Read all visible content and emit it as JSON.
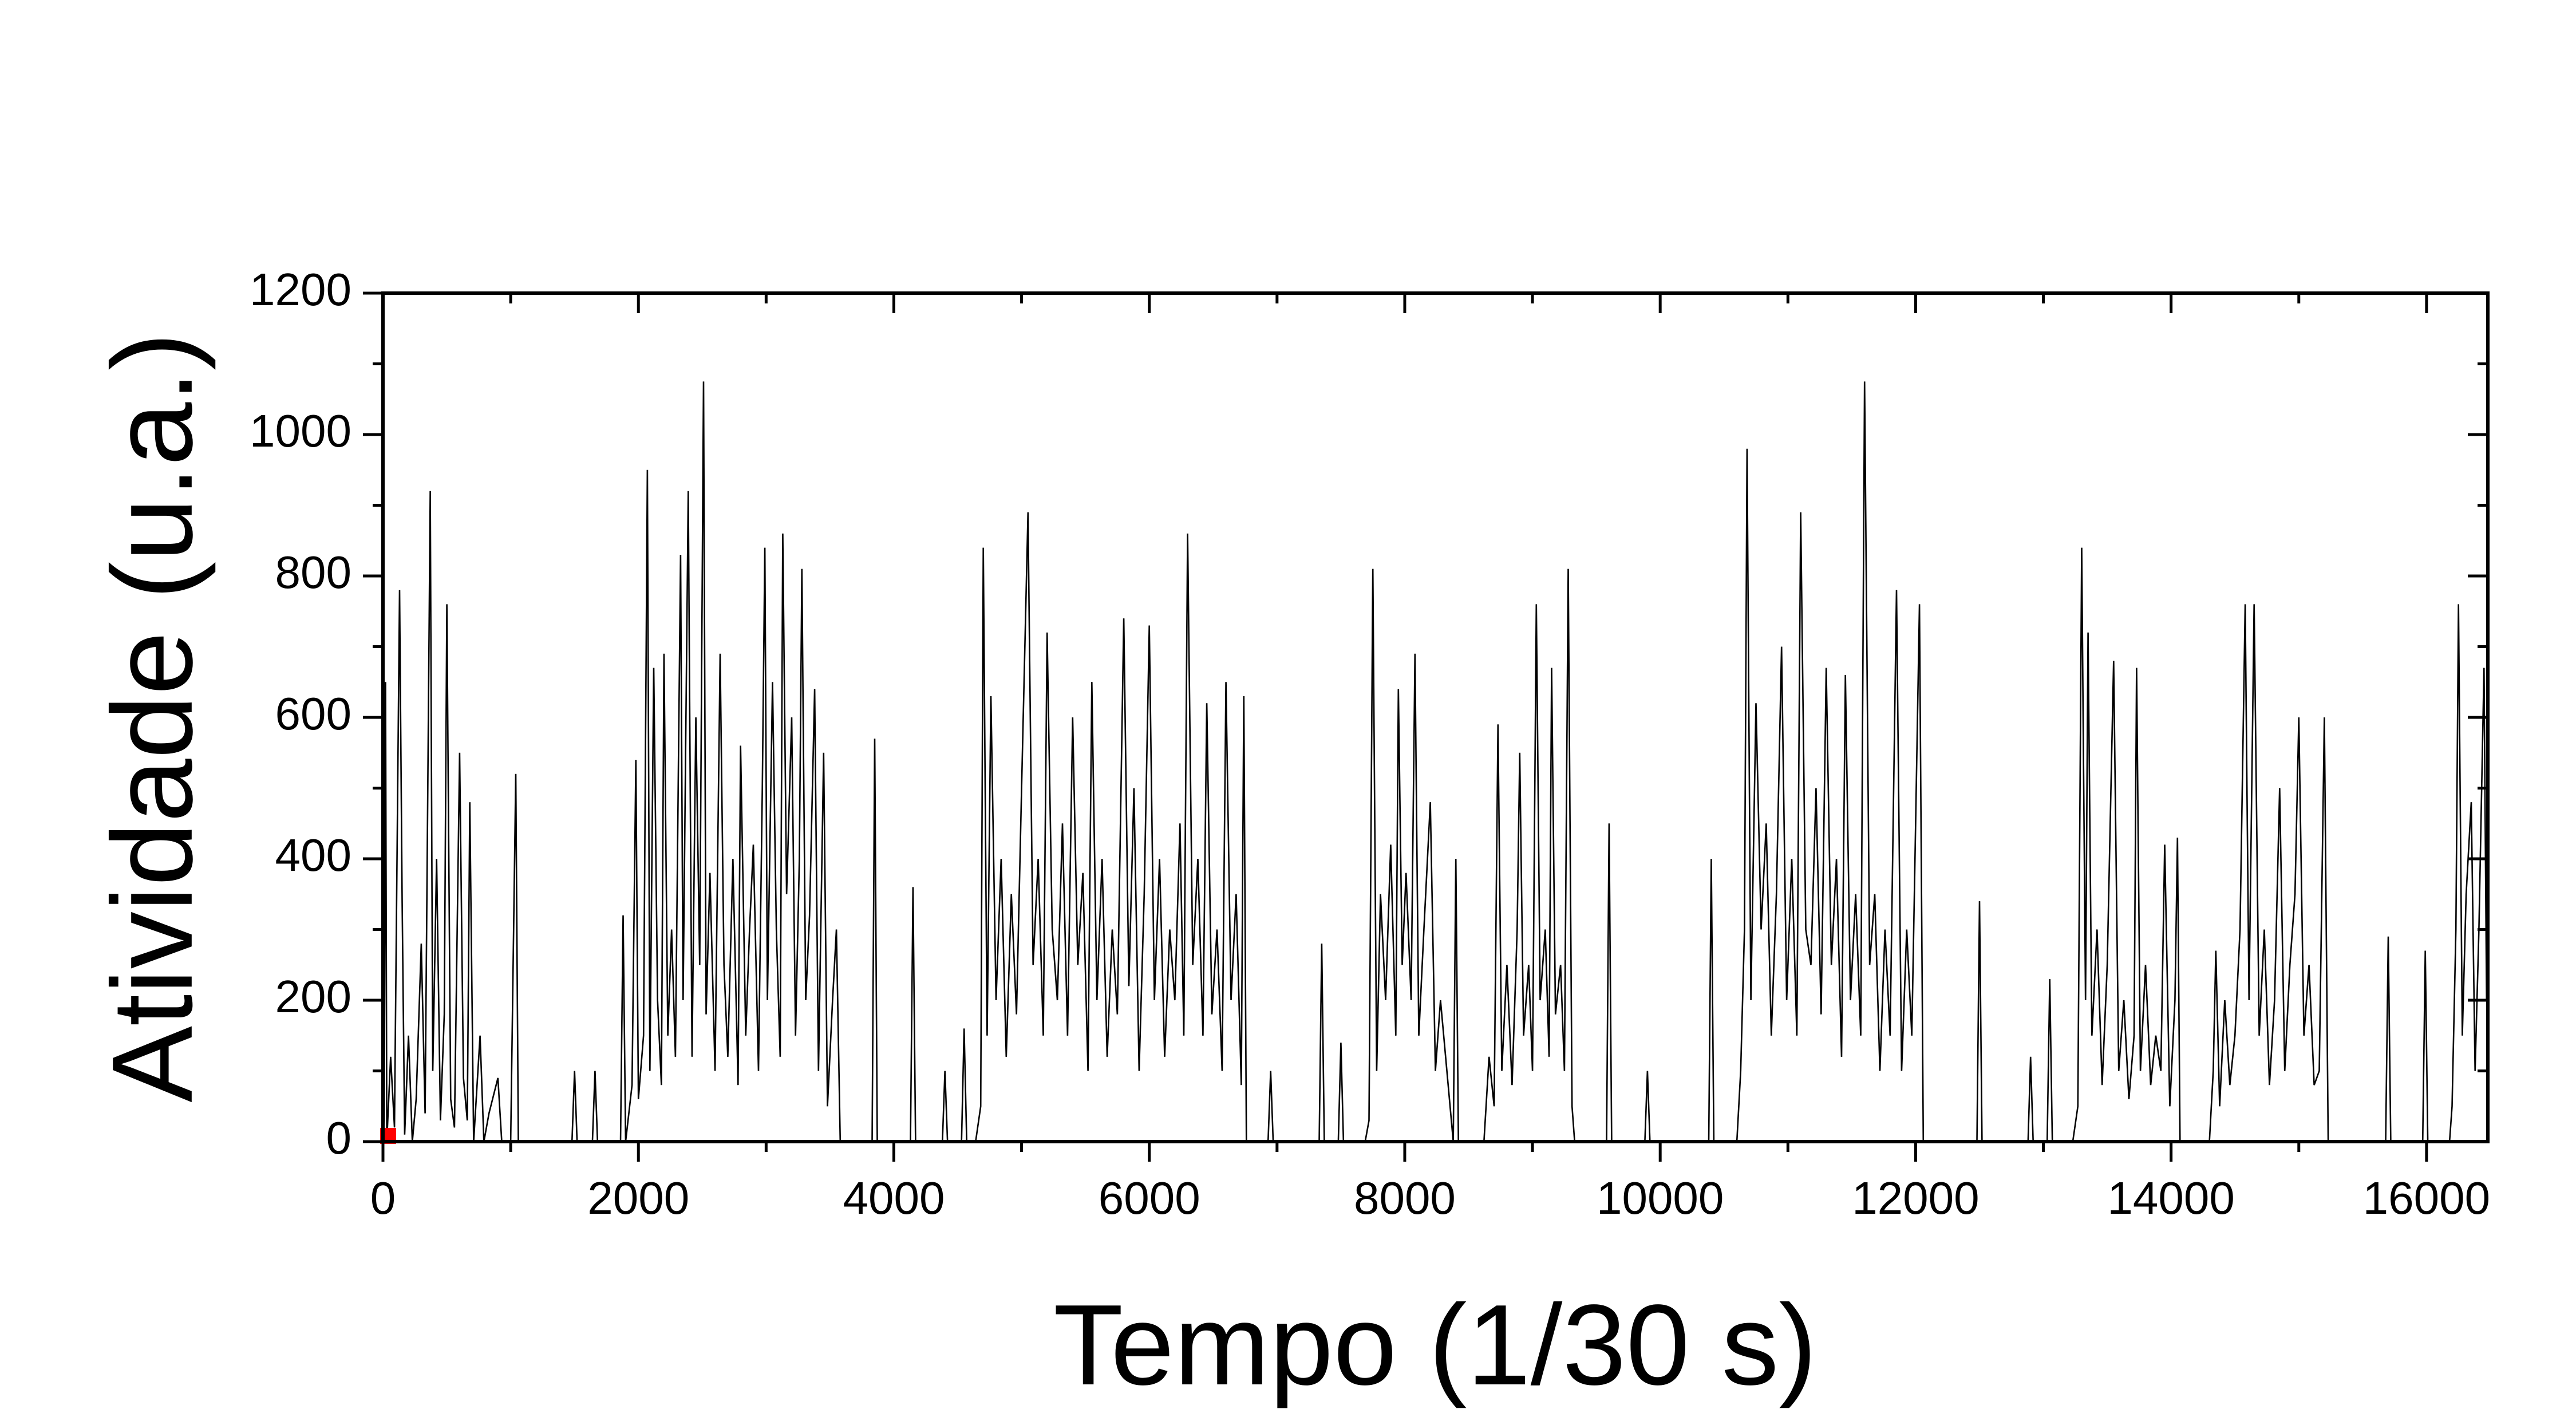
{
  "chart_data": {
    "type": "line",
    "xlabel": "Tempo (1/30 s)",
    "ylabel": "Atividade (u.a.)",
    "xlim": [
      0,
      16480
    ],
    "ylim": [
      0,
      1200
    ],
    "xticks": [
      0,
      2000,
      4000,
      6000,
      8000,
      10000,
      12000,
      14000,
      16000
    ],
    "yticks": [
      0,
      200,
      400,
      600,
      800,
      1000,
      1200
    ],
    "xminorticks": [
      1000,
      3000,
      5000,
      7000,
      9000,
      11000,
      13000,
      15000
    ],
    "yminorticks": [
      100,
      300,
      500,
      700,
      900,
      1100
    ],
    "grid": false,
    "series": [
      {
        "color": "#000000",
        "x": [
          0,
          10,
          20,
          30,
          60,
          90,
          130,
          150,
          170,
          200,
          230,
          260,
          300,
          330,
          370,
          390,
          420,
          450,
          480,
          500,
          530,
          560,
          600,
          630,
          660,
          680,
          710,
          760,
          790,
          830,
          900,
          930,
          1000,
          1040,
          1060,
          1200,
          1480,
          1500,
          1520,
          1640,
          1660,
          1680,
          1800,
          1860,
          1880,
          1900,
          1950,
          1980,
          2000,
          2040,
          2070,
          2090,
          2120,
          2150,
          2180,
          2200,
          2230,
          2260,
          2290,
          2330,
          2350,
          2390,
          2420,
          2450,
          2480,
          2510,
          2530,
          2560,
          2600,
          2640,
          2670,
          2700,
          2740,
          2780,
          2800,
          2840,
          2870,
          2900,
          2940,
          2970,
          2990,
          3010,
          3050,
          3080,
          3110,
          3130,
          3160,
          3200,
          3230,
          3260,
          3280,
          3310,
          3340,
          3380,
          3410,
          3450,
          3480,
          3520,
          3550,
          3580,
          3620,
          3830,
          3850,
          3870,
          4130,
          4150,
          4170,
          4380,
          4400,
          4420,
          4530,
          4550,
          4570,
          4640,
          4680,
          4700,
          4730,
          4760,
          4800,
          4840,
          4880,
          4920,
          4960,
          5000,
          5050,
          5090,
          5130,
          5170,
          5200,
          5240,
          5280,
          5320,
          5360,
          5400,
          5440,
          5480,
          5520,
          5550,
          5590,
          5630,
          5670,
          5710,
          5750,
          5800,
          5840,
          5880,
          5920,
          5960,
          6000,
          6040,
          6080,
          6120,
          6160,
          6200,
          6240,
          6270,
          6300,
          6340,
          6380,
          6420,
          6450,
          6490,
          6530,
          6570,
          6600,
          6640,
          6680,
          6720,
          6740,
          6760,
          6930,
          6950,
          6970,
          7330,
          7350,
          7370,
          7480,
          7500,
          7520,
          7690,
          7720,
          7750,
          7780,
          7810,
          7850,
          7890,
          7930,
          7950,
          7980,
          8010,
          8050,
          8080,
          8110,
          8150,
          8200,
          8240,
          8280,
          8380,
          8400,
          8420,
          8620,
          8660,
          8700,
          8730,
          8760,
          8800,
          8840,
          8880,
          8900,
          8930,
          8970,
          9000,
          9030,
          9060,
          9100,
          9130,
          9150,
          9180,
          9220,
          9250,
          9280,
          9310,
          9330,
          9580,
          9600,
          9620,
          9880,
          9900,
          9920,
          10380,
          10400,
          10420,
          10600,
          10630,
          10660,
          10680,
          10710,
          10750,
          10790,
          10830,
          10870,
          10910,
          10950,
          10990,
          11030,
          11070,
          11100,
          11140,
          11180,
          11220,
          11260,
          11300,
          11340,
          11380,
          11420,
          11450,
          11490,
          11530,
          11570,
          11600,
          11640,
          11680,
          11720,
          11760,
          11800,
          11850,
          11890,
          11930,
          11970,
          12000,
          12030,
          12060,
          12480,
          12500,
          12520,
          12880,
          12900,
          12920,
          13030,
          13050,
          13070,
          13230,
          13270,
          13300,
          13330,
          13350,
          13380,
          13420,
          13460,
          13500,
          13550,
          13590,
          13630,
          13670,
          13710,
          13730,
          13760,
          13800,
          13840,
          13880,
          13920,
          13950,
          13990,
          14030,
          14050,
          14070,
          14300,
          14330,
          14350,
          14380,
          14420,
          14460,
          14500,
          14540,
          14580,
          14610,
          14650,
          14690,
          14730,
          14770,
          14810,
          14850,
          14890,
          14930,
          14970,
          15000,
          15040,
          15080,
          15120,
          15160,
          15200,
          15230,
          15260,
          15680,
          15700,
          15720,
          15970,
          15990,
          16010,
          16180,
          16200,
          16230,
          16250,
          16280,
          16310,
          16350,
          16380,
          16410,
          16450,
          16470
        ],
        "values": [
          0,
          30,
          650,
          0,
          120,
          20,
          780,
          340,
          10,
          150,
          0,
          60,
          280,
          40,
          920,
          100,
          400,
          30,
          180,
          760,
          60,
          20,
          550,
          90,
          30,
          480,
          0,
          150,
          0,
          40,
          90,
          0,
          0,
          520,
          0,
          0,
          0,
          100,
          0,
          0,
          100,
          0,
          0,
          0,
          320,
          0,
          80,
          540,
          60,
          150,
          950,
          100,
          670,
          200,
          80,
          690,
          150,
          300,
          120,
          830,
          200,
          920,
          120,
          600,
          250,
          1075,
          180,
          380,
          100,
          690,
          250,
          120,
          400,
          80,
          560,
          150,
          300,
          420,
          100,
          500,
          840,
          200,
          650,
          300,
          120,
          860,
          350,
          600,
          150,
          400,
          810,
          200,
          320,
          640,
          100,
          550,
          50,
          200,
          300,
          0,
          0,
          0,
          570,
          0,
          0,
          360,
          0,
          0,
          100,
          0,
          0,
          160,
          0,
          0,
          50,
          840,
          150,
          630,
          200,
          400,
          120,
          350,
          180,
          500,
          890,
          250,
          400,
          150,
          720,
          300,
          200,
          450,
          150,
          600,
          250,
          380,
          100,
          650,
          200,
          400,
          120,
          300,
          180,
          740,
          220,
          500,
          100,
          350,
          730,
          200,
          400,
          120,
          300,
          200,
          450,
          150,
          860,
          250,
          400,
          150,
          620,
          180,
          300,
          100,
          650,
          200,
          350,
          80,
          630,
          0,
          0,
          100,
          0,
          0,
          280,
          0,
          0,
          140,
          0,
          0,
          30,
          810,
          100,
          350,
          200,
          420,
          150,
          640,
          250,
          380,
          200,
          690,
          150,
          300,
          480,
          100,
          200,
          0,
          400,
          0,
          0,
          120,
          50,
          590,
          100,
          250,
          80,
          300,
          550,
          150,
          250,
          100,
          760,
          200,
          300,
          120,
          670,
          180,
          250,
          100,
          810,
          50,
          0,
          0,
          450,
          0,
          0,
          100,
          0,
          0,
          400,
          0,
          0,
          100,
          300,
          980,
          200,
          620,
          300,
          450,
          150,
          350,
          700,
          200,
          400,
          150,
          890,
          300,
          250,
          500,
          180,
          670,
          250,
          400,
          120,
          660,
          200,
          350,
          150,
          1075,
          250,
          350,
          100,
          300,
          150,
          780,
          100,
          300,
          150,
          450,
          760,
          0,
          0,
          340,
          0,
          0,
          120,
          0,
          0,
          230,
          0,
          0,
          50,
          840,
          200,
          720,
          150,
          300,
          80,
          250,
          680,
          100,
          200,
          60,
          150,
          670,
          100,
          250,
          80,
          150,
          100,
          420,
          50,
          200,
          430,
          0,
          0,
          100,
          270,
          50,
          200,
          80,
          150,
          300,
          760,
          200,
          760,
          150,
          300,
          80,
          200,
          500,
          100,
          250,
          350,
          600,
          150,
          250,
          80,
          100,
          600,
          0,
          0,
          0,
          290,
          0,
          0,
          270,
          0,
          0,
          50,
          300,
          760,
          150,
          350,
          480,
          100,
          300,
          670,
          200
        ]
      },
      {
        "color": "#ff0000",
        "type": "scatter",
        "x": [
          40
        ],
        "values": [
          8
        ]
      }
    ]
  }
}
